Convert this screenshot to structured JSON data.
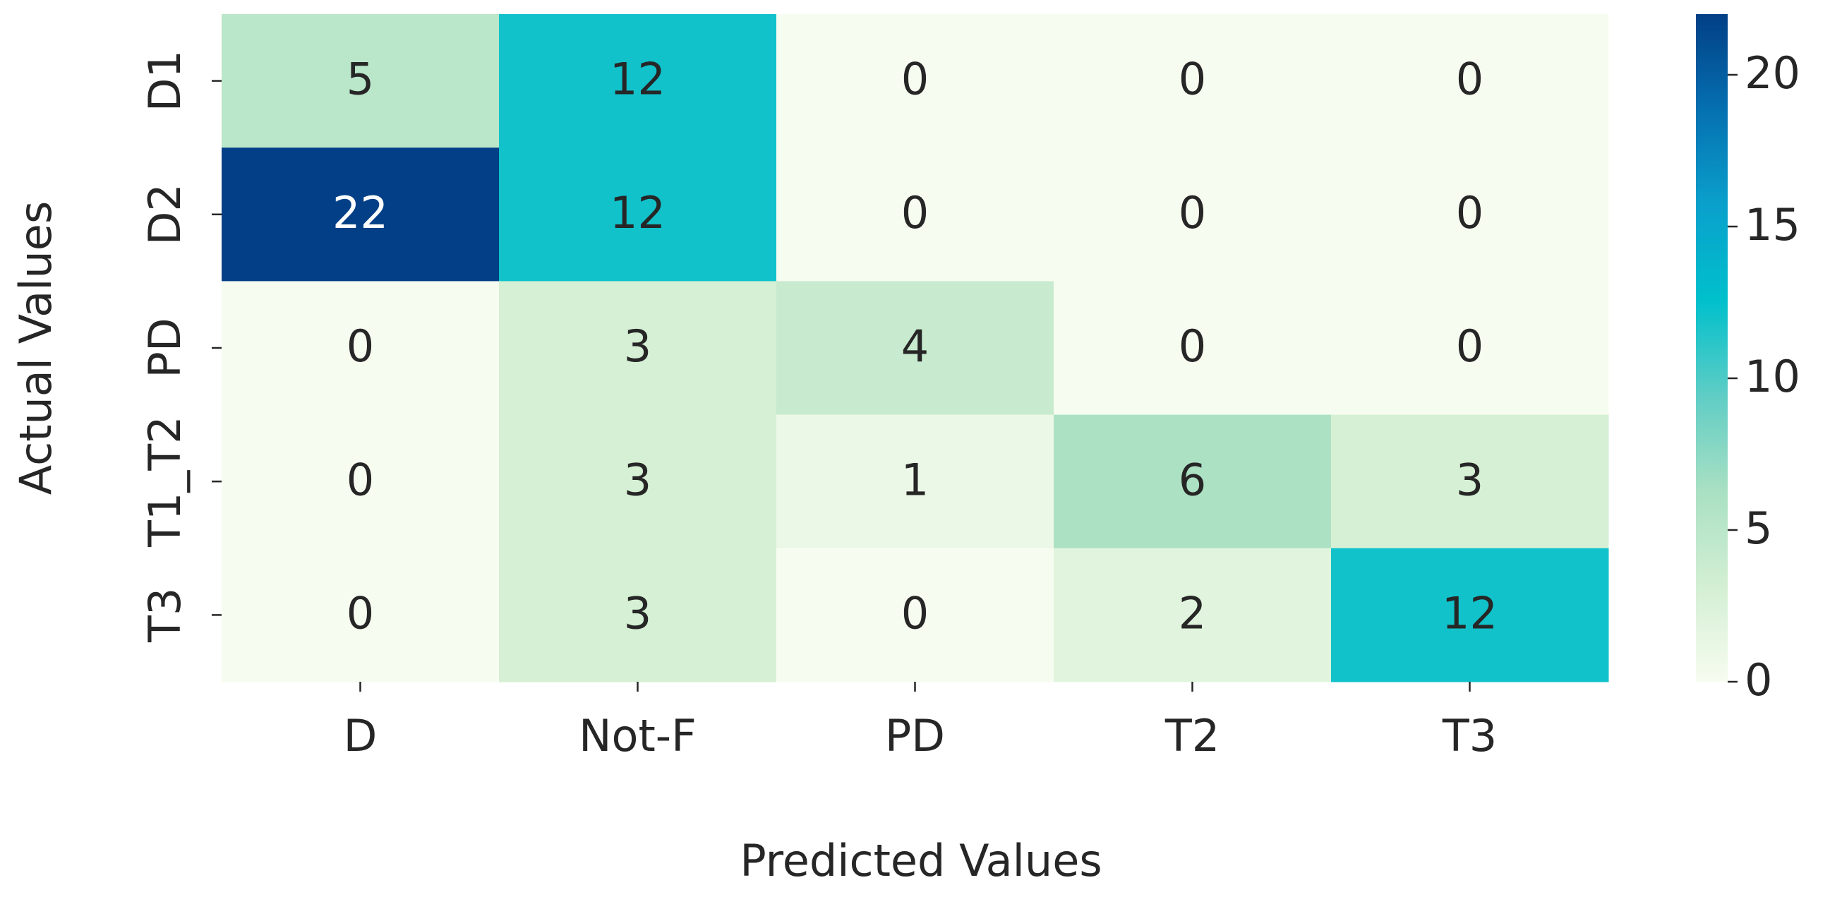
{
  "chart_data": {
    "type": "heatmap",
    "x_label": "Predicted Values",
    "y_label": "Actual Values",
    "x_categories": [
      "D",
      "Not-F",
      "PD",
      "T2",
      "T3"
    ],
    "y_categories": [
      "D1",
      "D2",
      "PD",
      "T1_T2",
      "T3"
    ],
    "values": [
      [
        5,
        12,
        0,
        0,
        0
      ],
      [
        22,
        12,
        0,
        0,
        0
      ],
      [
        0,
        3,
        4,
        0,
        0
      ],
      [
        0,
        3,
        1,
        6,
        3
      ],
      [
        0,
        3,
        0,
        2,
        12
      ]
    ],
    "colors": [
      "#f7fcf0",
      "#d3efd3",
      "#a9e0c3",
      "#5fcdc5",
      "#00c0cc",
      "#0aa0cc",
      "#0570b0",
      "#023f86"
    ],
    "colorbar": {
      "lim": [
        0,
        22
      ],
      "ticks": [
        0,
        5,
        10,
        15,
        20
      ]
    }
  }
}
